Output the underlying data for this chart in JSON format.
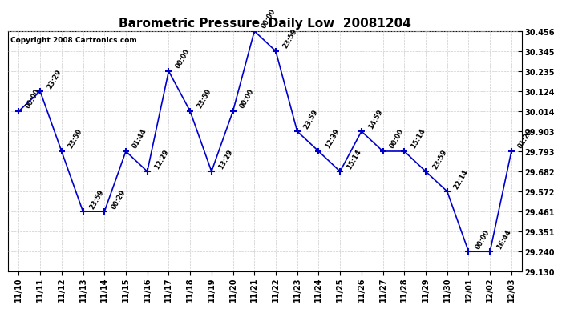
{
  "title": "Barometric Pressure  Daily Low  20081204",
  "copyright": "Copyright 2008 Cartronics.com",
  "x_labels": [
    "11/10",
    "11/11",
    "11/12",
    "11/13",
    "11/14",
    "11/15",
    "11/16",
    "11/17",
    "11/18",
    "11/19",
    "11/20",
    "11/21",
    "11/22",
    "11/23",
    "11/24",
    "11/25",
    "11/26",
    "11/27",
    "11/28",
    "11/29",
    "11/30",
    "12/01",
    "12/02",
    "12/03"
  ],
  "y_values": [
    30.014,
    30.124,
    29.793,
    29.461,
    29.461,
    29.793,
    29.682,
    30.235,
    30.014,
    29.682,
    30.014,
    30.456,
    30.345,
    29.903,
    29.793,
    29.682,
    29.903,
    29.793,
    29.793,
    29.682,
    29.572,
    29.24,
    29.24,
    29.793
  ],
  "point_labels": [
    "00:00",
    "23:29",
    "23:59",
    "23:59",
    "00:29",
    "01:44",
    "12:29",
    "00:00",
    "23:59",
    "13:29",
    "00:00",
    "00:00",
    "23:59",
    "23:59",
    "12:39",
    "15:14",
    "14:59",
    "00:00",
    "15:14",
    "23:59",
    "22:14",
    "00:00",
    "16:44",
    "01:29"
  ],
  "ylim_min": 29.13,
  "ylim_max": 30.456,
  "yticks": [
    29.13,
    29.24,
    29.351,
    29.461,
    29.572,
    29.682,
    29.793,
    29.903,
    30.014,
    30.124,
    30.235,
    30.345,
    30.456
  ],
  "line_color": "#0000cc",
  "marker_color": "#0000cc",
  "background_color": "#ffffff",
  "grid_color": "#cccccc",
  "title_fontsize": 11,
  "tick_fontsize": 7,
  "point_label_fontsize": 6,
  "copyright_fontsize": 6.5
}
